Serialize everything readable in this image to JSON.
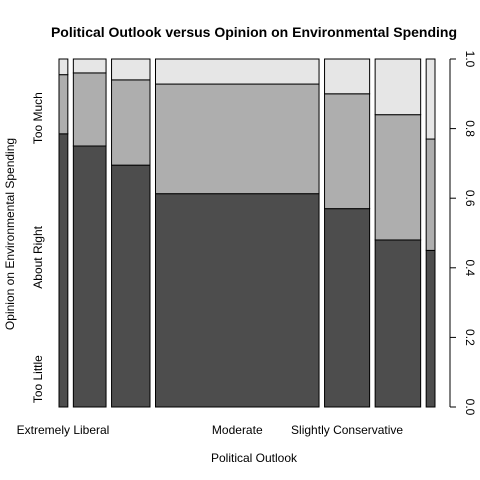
{
  "chart_data": {
    "type": "spineplot",
    "title": "Political Outlook versus Opinion on Environmental Spending",
    "xlabel": "Political Outlook",
    "ylabel": "Opinion on Environmental Spending",
    "x_tick_labels": [
      "Extremely Liberal",
      "Moderate",
      "Slightly Conservative"
    ],
    "y_category_labels": [
      "Too Little",
      "About Right",
      "Too Much"
    ],
    "right_axis": {
      "ylim": [
        0,
        1
      ],
      "ticks": [
        "0.0",
        "0.2",
        "0.4",
        "0.6",
        "0.8",
        "1.0"
      ]
    },
    "columns": [
      {
        "label": "Extremely Liberal",
        "width_share": 0.02,
        "too_little": 0.785,
        "about_right": 0.17,
        "too_much": 0.045
      },
      {
        "label": "",
        "width_share": 0.074,
        "too_little": 0.75,
        "about_right": 0.21,
        "too_much": 0.04
      },
      {
        "label": "",
        "width_share": 0.087,
        "too_little": 0.695,
        "about_right": 0.245,
        "too_much": 0.06
      },
      {
        "label": "Moderate",
        "width_share": 0.37,
        "too_little": 0.613,
        "about_right": 0.315,
        "too_much": 0.072
      },
      {
        "label": "Slightly Conservative",
        "width_share": 0.102,
        "too_little": 0.57,
        "about_right": 0.33,
        "too_much": 0.1
      },
      {
        "label": "",
        "width_share": 0.103,
        "too_little": 0.48,
        "about_right": 0.36,
        "too_much": 0.16
      },
      {
        "label": "",
        "width_share": 0.02,
        "too_little": 0.45,
        "about_right": 0.32,
        "too_much": 0.23
      }
    ],
    "colors": {
      "too_little": "#4d4d4d",
      "about_right": "#aeaeae",
      "too_much": "#e6e6e6",
      "border": "#000000"
    }
  }
}
